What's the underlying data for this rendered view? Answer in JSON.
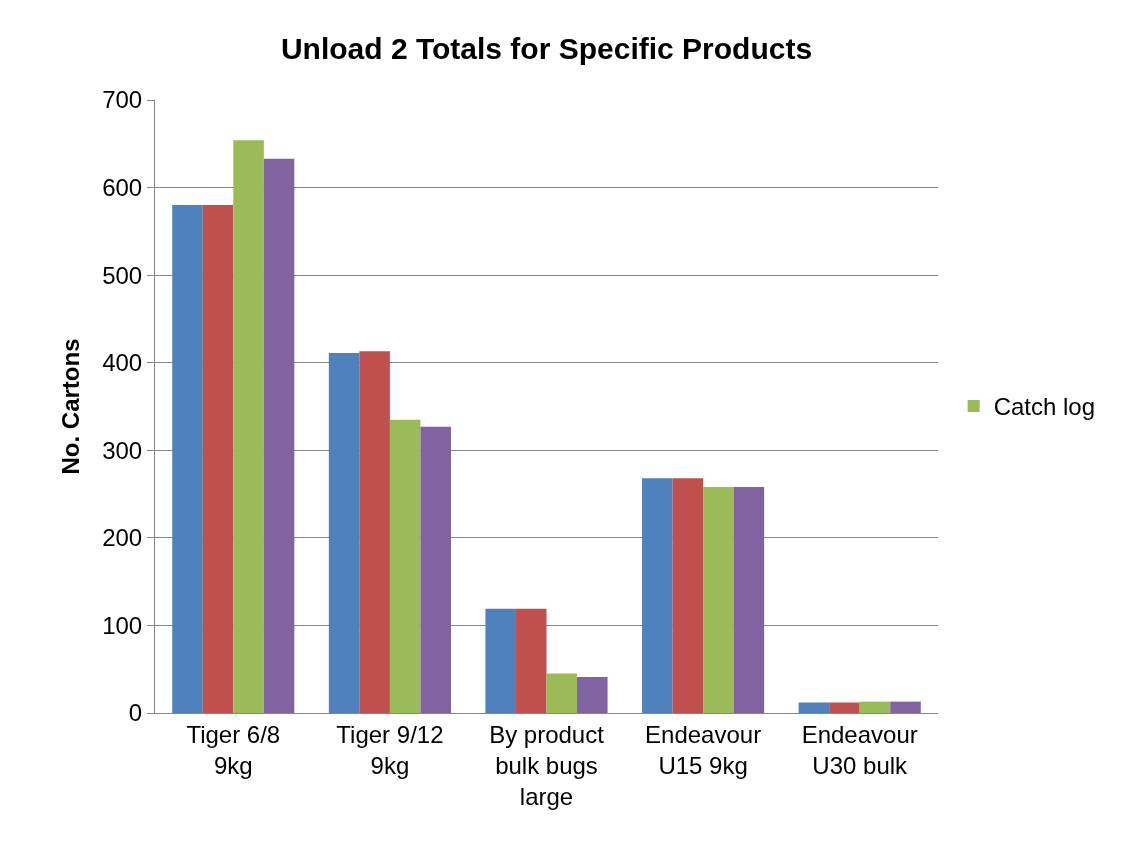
{
  "chart_data": {
    "type": "bar",
    "title": "Unload 2 Totals for Specific Products",
    "ylabel": "No. Cartons",
    "categories": [
      "Tiger 6/8 9kg",
      "Tiger 9/12 9kg",
      "By product bulk bugs large",
      "Endeavour U15 9kg",
      "Endeavour U30 bulk"
    ],
    "series": [
      {
        "color": "#4f81bd",
        "values": [
          580,
          411,
          119,
          268,
          12
        ]
      },
      {
        "color": "#c0504d",
        "values": [
          580,
          413,
          119,
          268,
          12
        ]
      },
      {
        "name": "Catch log",
        "color": "#9bbb59",
        "values": [
          654,
          335,
          45,
          258,
          13
        ]
      },
      {
        "color": "#8064a2",
        "values": [
          633,
          327,
          41,
          258,
          13
        ]
      }
    ],
    "ylim": [
      0,
      700
    ],
    "yticks": [
      0,
      100,
      200,
      300,
      400,
      500,
      600,
      700
    ],
    "grid": "y",
    "legend": "right"
  }
}
